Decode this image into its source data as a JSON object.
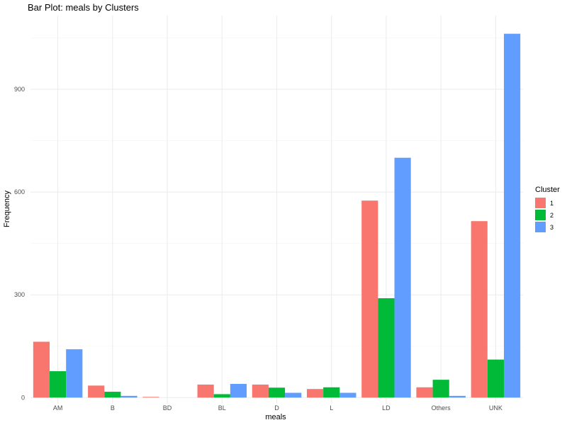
{
  "chart_data": {
    "type": "bar",
    "title": "Bar Plot:  meals  by Clusters",
    "xlabel": "meals",
    "ylabel": "Frequency",
    "categories": [
      "AM",
      "B",
      "BD",
      "BL",
      "D",
      "L",
      "LD",
      "Others",
      "UNK"
    ],
    "series": [
      {
        "name": "1",
        "color": "#F8766D",
        "values": [
          163,
          35,
          2,
          38,
          38,
          25,
          575,
          30,
          515
        ]
      },
      {
        "name": "2",
        "color": "#00BA38",
        "values": [
          77,
          17,
          0,
          10,
          29,
          30,
          290,
          52,
          111
        ]
      },
      {
        "name": "3",
        "color": "#619CFF",
        "values": [
          141,
          5,
          0,
          40,
          14,
          14,
          700,
          5,
          1062
        ]
      }
    ],
    "yticks": [
      0,
      300,
      600,
      900
    ],
    "ylim": [
      -18,
      1115
    ],
    "grid": true,
    "legend": {
      "title": "Cluster",
      "position": "right"
    }
  }
}
